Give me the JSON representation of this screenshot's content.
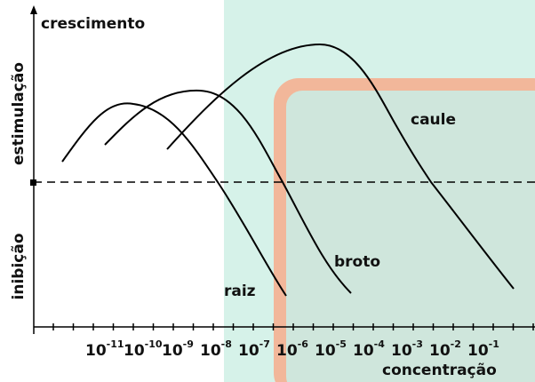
{
  "y_axis": {
    "title": "crescimento",
    "upper_label": "estimulação",
    "lower_label": "inibição"
  },
  "x_axis": {
    "label": "concentração",
    "ticks": [
      {
        "base": "10",
        "exponent": "-11"
      },
      {
        "base": "10",
        "exponent": "-10"
      },
      {
        "base": "10",
        "exponent": "-9"
      },
      {
        "base": "10",
        "exponent": "-8"
      },
      {
        "base": "10",
        "exponent": "-7"
      },
      {
        "base": "10",
        "exponent": "-6"
      },
      {
        "base": "10",
        "exponent": "-5"
      },
      {
        "base": "10",
        "exponent": "-4"
      },
      {
        "base": "10",
        "exponent": "-3"
      },
      {
        "base": "10",
        "exponent": "-2"
      },
      {
        "base": "10",
        "exponent": "-1"
      }
    ]
  },
  "curves": {
    "raiz": "raiz",
    "broto": "broto",
    "caule": "caule"
  }
}
